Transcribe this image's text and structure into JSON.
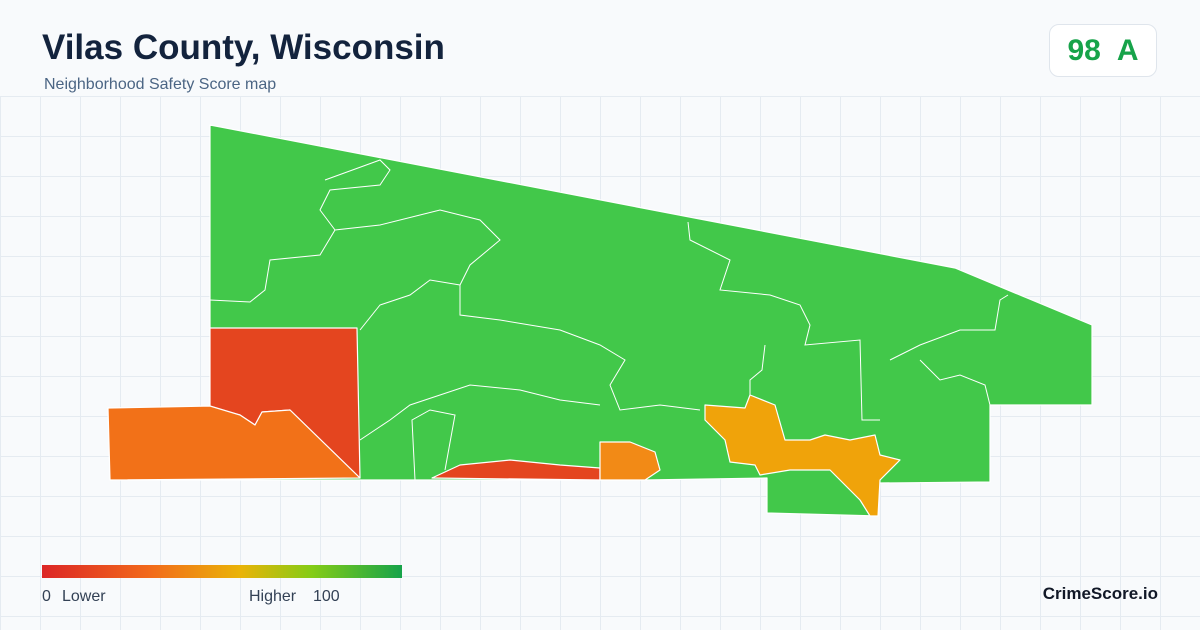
{
  "header": {
    "title": "Vilas County, Wisconsin",
    "subtitle": "Neighborhood Safety Score map"
  },
  "score": {
    "value": 98,
    "grade": "A"
  },
  "legend": {
    "min": 0,
    "min_label": "Lower",
    "max_label": "Higher",
    "max": 100
  },
  "brand": "CrimeScore.io"
}
